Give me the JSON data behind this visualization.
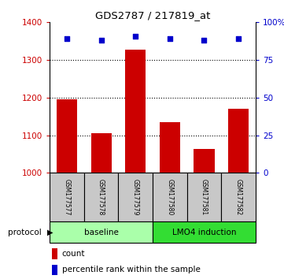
{
  "title": "GDS2787 / 217819_at",
  "samples": [
    "GSM177577",
    "GSM177578",
    "GSM177579",
    "GSM177580",
    "GSM177581",
    "GSM177582"
  ],
  "counts": [
    1195,
    1105,
    1328,
    1135,
    1063,
    1170
  ],
  "percentile_ranks": [
    89,
    88,
    91,
    89,
    88,
    89
  ],
  "ylim_left": [
    1000,
    1400
  ],
  "ylim_right": [
    0,
    100
  ],
  "yticks_left": [
    1000,
    1100,
    1200,
    1300,
    1400
  ],
  "yticks_right": [
    0,
    25,
    50,
    75,
    100
  ],
  "bar_color": "#CC0000",
  "dot_color": "#0000CC",
  "bar_width": 0.6,
  "label_count": "count",
  "label_percentile": "percentile rank within the sample",
  "protocol_label": "protocol",
  "baseline_color": "#AAFFAA",
  "lmo4_color": "#33DD33",
  "sample_box_color": "#C8C8C8",
  "tick_color_left": "#CC0000",
  "tick_color_right": "#0000CC",
  "grid_yticks": [
    1100,
    1200,
    1300
  ]
}
